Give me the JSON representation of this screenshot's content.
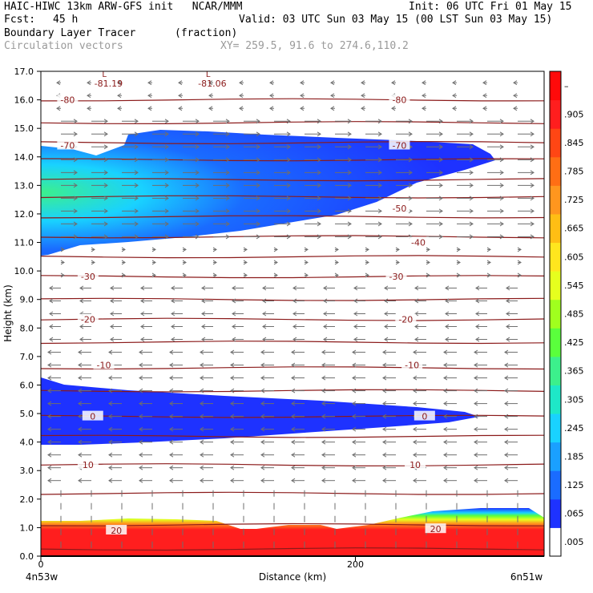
{
  "header": {
    "title_line": "HAIC-HIWC 13km ARW-GFS init   NCAR/MMM",
    "init": "Init: 06 UTC Fri 01 May 15",
    "fcst_label": "Fcst:",
    "fcst_value": "45 h",
    "valid": "Valid: 03 UTC Sun 03 May 15 (00 LST Sun 03 May 15)",
    "field": "Boundary Layer Tracer",
    "units": "(fraction)",
    "vectors": "Circulation vectors",
    "xy": "XY= 259.5, 91.6 to 274.6,110.2"
  },
  "chart_data": {
    "type": "heatmap",
    "ylabel": "Height (km)",
    "xlabel": "Distance (km)",
    "ylim": [
      0,
      17
    ],
    "xlim": [
      0,
      320
    ],
    "y_ticks": [
      "0.0",
      "1.0",
      "2.0",
      "3.0",
      "4.0",
      "5.0",
      "6.0",
      "7.0",
      "8.0",
      "9.0",
      "10.0",
      "11.0",
      "12.0",
      "13.0",
      "14.0",
      "15.0",
      "16.0",
      "17.0"
    ],
    "x_ticks": [
      {
        "value": 0,
        "label": "0"
      },
      {
        "value": 200,
        "label": "200"
      }
    ],
    "x_end_labels": {
      "left": "4n53w",
      "right": "6n51w"
    },
    "colorbar": {
      "labels": [
        ".005",
        ".065",
        ".125",
        ".185",
        ".245",
        ".305",
        ".365",
        ".425",
        ".485",
        ".545",
        ".605",
        ".665",
        ".725",
        ".785",
        ".845",
        ".905",
        "–"
      ],
      "colors": [
        "#ffffff",
        "#1e32ff",
        "#1a6cff",
        "#1aa0ff",
        "#19d2ff",
        "#1ee8c8",
        "#3cf08c",
        "#5aff3c",
        "#a0ff1e",
        "#e6ff1e",
        "#ffe61e",
        "#ffbe14",
        "#ff961e",
        "#ff6e14",
        "#ff4614",
        "#ff1e1e",
        "#ff0a0a"
      ]
    },
    "temperature_labels": [
      {
        "text": "-80",
        "x": 17,
        "y": 16.0
      },
      {
        "text": "-80",
        "x": 228,
        "y": 16.0
      },
      {
        "text": "-70",
        "x": 17,
        "y": 14.4
      },
      {
        "text": "-70",
        "x": 228,
        "y": 14.4
      },
      {
        "text": "-50",
        "x": 228,
        "y": 12.2
      },
      {
        "text": "-40",
        "x": 240,
        "y": 11.0
      },
      {
        "text": "-30",
        "x": 30,
        "y": 9.8
      },
      {
        "text": "-30",
        "x": 226,
        "y": 9.8
      },
      {
        "text": "-20",
        "x": 30,
        "y": 8.3
      },
      {
        "text": "-20",
        "x": 232,
        "y": 8.3
      },
      {
        "text": "-10",
        "x": 40,
        "y": 6.7
      },
      {
        "text": "-10",
        "x": 236,
        "y": 6.7
      },
      {
        "text": "0",
        "x": 33,
        "y": 4.9
      },
      {
        "text": "0",
        "x": 244,
        "y": 4.9
      },
      {
        "text": "10",
        "x": 30,
        "y": 3.2
      },
      {
        "text": "10",
        "x": 238,
        "y": 3.2
      },
      {
        "text": "20",
        "x": 48,
        "y": 0.9
      },
      {
        "text": "20",
        "x": 251,
        "y": 0.95
      }
    ],
    "lows": [
      {
        "mark": "L",
        "value": "-81.19",
        "x": 43,
        "y": 16.8
      },
      {
        "mark": "L",
        "value": "-81.06",
        "x": 109,
        "y": 16.8
      }
    ],
    "isotherm_heights": [
      0.25,
      1.1,
      2.2,
      3.2,
      4.2,
      4.9,
      5.8,
      6.6,
      7.5,
      8.3,
      9.0,
      9.8,
      10.5,
      11.2,
      11.9,
      12.6,
      13.2,
      13.9,
      14.5,
      15.2,
      16.0
    ]
  }
}
